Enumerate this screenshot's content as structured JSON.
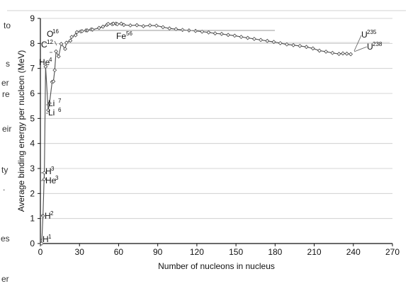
{
  "page": {
    "background_fragments": [
      "to",
      "s",
      "er",
      "re",
      "eir",
      "ty",
      ".",
      "es",
      "er"
    ]
  },
  "chart_data": {
    "type": "line",
    "title": "",
    "xlabel": "Number of nucleons in nucleus",
    "ylabel": "Average binding energy per nucleon (MeV)",
    "xlim": [
      0,
      270
    ],
    "ylim": [
      0,
      9
    ],
    "xticks": [
      "0",
      "30",
      "60",
      "90",
      "120",
      "150",
      "180",
      "210",
      "240",
      "270"
    ],
    "yticks": [
      "0",
      "1",
      "2",
      "3",
      "4",
      "5",
      "6",
      "7",
      "8",
      "9"
    ],
    "grid": true,
    "legend": "none",
    "series": [
      {
        "name": "",
        "color": "#555555",
        "marker": "diamond-open",
        "x": [
          1,
          2,
          3,
          3,
          4,
          6,
          7,
          9,
          10,
          11,
          12,
          14,
          16,
          19,
          20,
          23,
          24,
          27,
          28,
          31,
          32,
          35,
          36,
          39,
          40,
          45,
          48,
          51,
          52,
          55,
          56,
          58,
          59,
          62,
          64,
          69,
          74,
          79,
          84,
          89,
          94,
          99,
          104,
          109,
          114,
          119,
          124,
          129,
          134,
          139,
          144,
          149,
          154,
          159,
          164,
          169,
          174,
          179,
          184,
          189,
          194,
          199,
          204,
          209,
          214,
          219,
          224,
          229,
          232,
          235,
          238
        ],
        "values": [
          0,
          1.11,
          2.83,
          2.57,
          7.07,
          5.33,
          5.61,
          6.46,
          6.48,
          6.93,
          7.68,
          7.48,
          7.98,
          7.78,
          8.03,
          8.11,
          8.26,
          8.33,
          8.45,
          8.48,
          8.49,
          8.52,
          8.52,
          8.56,
          8.55,
          8.62,
          8.67,
          8.74,
          8.78,
          8.77,
          8.79,
          8.79,
          8.77,
          8.79,
          8.74,
          8.72,
          8.73,
          8.69,
          8.72,
          8.71,
          8.65,
          8.6,
          8.57,
          8.54,
          8.52,
          8.5,
          8.47,
          8.44,
          8.4,
          8.38,
          8.34,
          8.31,
          8.26,
          8.22,
          8.18,
          8.14,
          8.1,
          8.06,
          8.01,
          7.96,
          7.93,
          7.9,
          7.86,
          7.8,
          7.71,
          7.67,
          7.62,
          7.58,
          7.6,
          7.59,
          7.57
        ]
      }
    ],
    "annotations": [
      {
        "base": "H",
        "sup": "1"
      },
      {
        "base": "H",
        "sup": "2"
      },
      {
        "base": "H",
        "sup": "3"
      },
      {
        "base": "He",
        "sup": "3"
      },
      {
        "base": "He",
        "sup": "4"
      },
      {
        "base": "Li",
        "sup": "6"
      },
      {
        "base": "Li",
        "sup": "7"
      },
      {
        "base": "C",
        "sup": "12"
      },
      {
        "base": "O",
        "sup": "16"
      },
      {
        "base": "Fe",
        "sup": "56"
      },
      {
        "base": "U",
        "sup": "235"
      },
      {
        "base": "U",
        "sup": "238"
      }
    ]
  }
}
